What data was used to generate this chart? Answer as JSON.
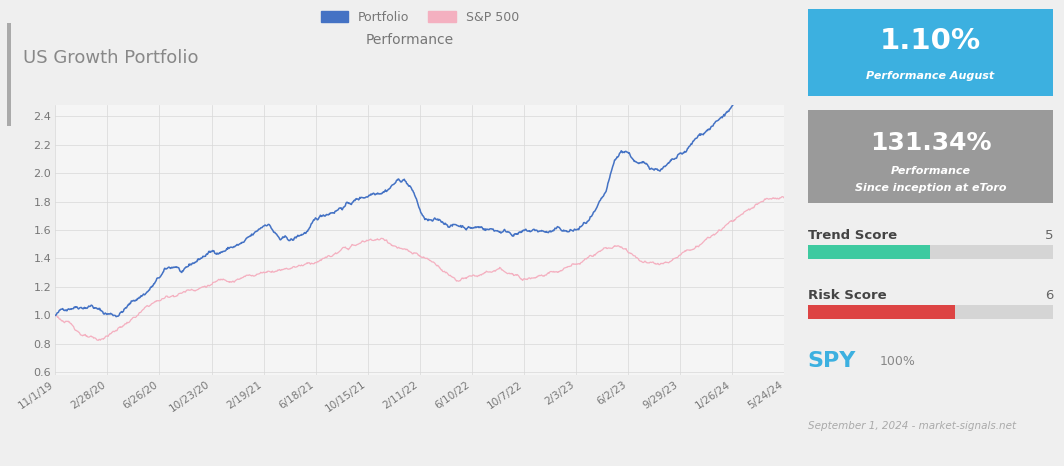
{
  "title": "US Growth Portfolio",
  "chart_title": "Performance",
  "bg_color": "#efefef",
  "chart_area_bg": "#f5f5f5",
  "right_panel_bg": "#efefef",
  "perf_aug_pct": "1.10%",
  "perf_aug_label": "Performance August",
  "perf_aug_bg": "#3cb0e0",
  "perf_inception_pct": "131.34%",
  "perf_inception_label1": "Performance",
  "perf_inception_label2": "Since inception at eToro",
  "perf_inception_bg": "#9a9a9a",
  "trend_score_label": "Trend Score",
  "trend_score_value": 5,
  "trend_score_max": 10,
  "trend_score_color": "#3ecaa0",
  "risk_score_label": "Risk Score",
  "risk_score_value": 6,
  "risk_score_max": 10,
  "risk_score_color": "#dd4444",
  "spy_label": "SPY",
  "spy_pct": "100%",
  "spy_color": "#3cb0e0",
  "footer": "September 1, 2024 - market-signals.net",
  "xtick_labels": [
    "11/1/19",
    "2/28/20",
    "6/26/20",
    "10/23/20",
    "2/19/21",
    "6/18/21",
    "10/15/21",
    "2/11/22",
    "6/10/22",
    "10/7/22",
    "2/3/23",
    "6/2/23",
    "9/29/23",
    "1/26/24",
    "5/24/24"
  ],
  "ytick_values": [
    0.6,
    0.8,
    1.0,
    1.2,
    1.4,
    1.6,
    1.8,
    2.0,
    2.2,
    2.4
  ],
  "portfolio_color": "#4472c4",
  "sp500_color": "#f4b0c0",
  "ylim": [
    0.58,
    2.48
  ],
  "grid_color": "#d8d8d8",
  "accent_bar_color": "#aaaaaa",
  "title_color": "#888888",
  "label_color": "#777777"
}
